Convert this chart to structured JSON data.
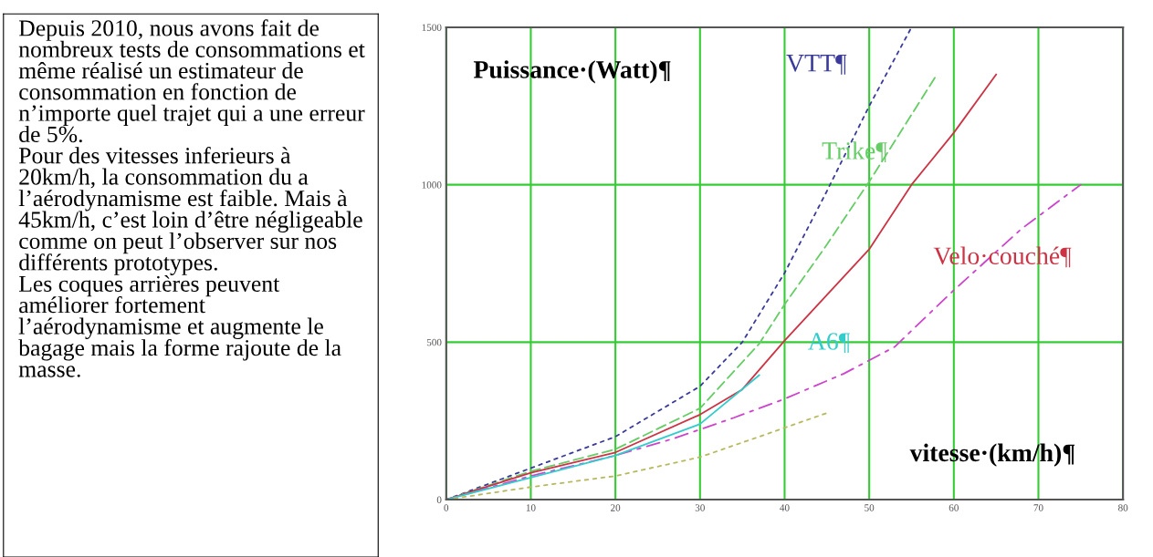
{
  "chart_data": [
    {
      "type": "other",
      "annotations": [
        "Depuis 2010, nous avons fait de nombreux tests de consommations et même réalisé un estimateur de consommation en fonction de n’importe quel trajet qui a une erreur de 5%.",
        "Pour des vitesses inferieurs à 20km/h, la consommation du a l’aérodynamisme est faible. Mais à 45km/h, c’est loin d’être négligeable comme on peut l’observer sur nos différents prototypes.",
        "Les coques arrières peuvent améliorer fortement l’aérodynamisme et augmente le bagage mais la forme rajoute de la masse."
      ]
    },
    {
      "type": "line",
      "xlabel": "vitesse·(km/h)¶",
      "ylabel": "Puissance·(Watt)¶",
      "xlim": [
        0,
        80
      ],
      "ylim": [
        0,
        1500
      ],
      "xticks": [
        0,
        10,
        20,
        30,
        40,
        50,
        60,
        70,
        80
      ],
      "yticks": [
        0,
        500,
        1000,
        1500
      ],
      "grid": true,
      "legend": false,
      "marker": "none",
      "series": [
        {
          "name": "VTT¶",
          "color": "#3a3a9a",
          "line_style": "dotted",
          "x": [
            0,
            10,
            20,
            30,
            35,
            40,
            45,
            50,
            55
          ],
          "values": [
            0,
            100,
            200,
            360,
            500,
            720,
            980,
            1250,
            1500
          ]
        },
        {
          "name": "Trike¶",
          "color": "#66cc66",
          "line_style": "dashed",
          "x": [
            0,
            10,
            20,
            30,
            37,
            40,
            45,
            50,
            58
          ],
          "values": [
            0,
            90,
            160,
            290,
            495,
            620,
            810,
            1010,
            1350
          ]
        },
        {
          "name": "Velo·couché¶",
          "color": "#cc3344",
          "line_style": "solid",
          "x": [
            0,
            10,
            20,
            30,
            35,
            40,
            50,
            55,
            60,
            65
          ],
          "values": [
            0,
            85,
            150,
            270,
            350,
            505,
            795,
            1000,
            1165,
            1350
          ]
        },
        {
          "color": "#cc44cc",
          "line_style": "dashdot",
          "x": [
            0,
            10,
            20,
            27,
            34,
            40,
            47,
            53,
            60,
            68,
            75
          ],
          "values": [
            0,
            75,
            140,
            195,
            260,
            320,
            400,
            485,
            665,
            860,
            1000
          ]
        },
        {
          "name": "A6¶",
          "color": "#33cccc",
          "line_style": "solid",
          "x": [
            0,
            10,
            20,
            30,
            37
          ],
          "values": [
            0,
            70,
            140,
            240,
            395
          ]
        },
        {
          "color": "#b8b860",
          "line_style": "dotted",
          "x": [
            0,
            10,
            20,
            30,
            37,
            45
          ],
          "values": [
            0,
            40,
            75,
            135,
            200,
            275
          ]
        }
      ]
    }
  ]
}
